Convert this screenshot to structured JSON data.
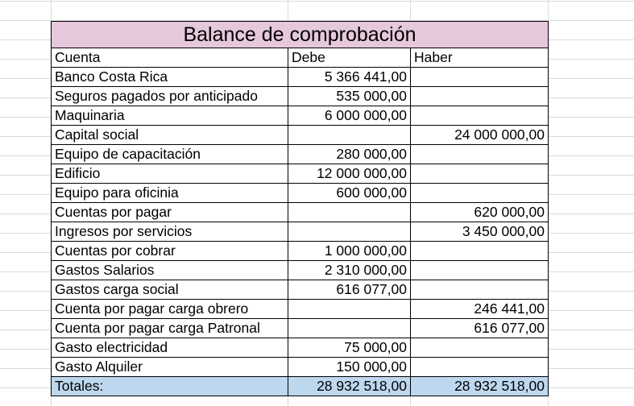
{
  "sheet": {
    "title": "Balance de comprobación",
    "headers": {
      "account": "Cuenta",
      "debit": "Debe",
      "credit": "Haber"
    },
    "rows": [
      {
        "account": "Banco Costa Rica",
        "debit": "5 366 441,00",
        "credit": ""
      },
      {
        "account": "Seguros pagados por anticipado",
        "debit": "535 000,00",
        "credit": ""
      },
      {
        "account": "Maquinaria",
        "debit": "6 000 000,00",
        "credit": ""
      },
      {
        "account": "Capital social",
        "debit": "",
        "credit": "24 000 000,00"
      },
      {
        "account": "Equipo de capacitación",
        "debit": "280 000,00",
        "credit": ""
      },
      {
        "account": "Edificio",
        "debit": "12 000 000,00",
        "credit": ""
      },
      {
        "account": "Equipo para oficinia",
        "debit": "600 000,00",
        "credit": ""
      },
      {
        "account": "Cuentas por pagar",
        "debit": "",
        "credit": "620 000,00"
      },
      {
        "account": "Ingresos por servicios",
        "debit": "",
        "credit": "3 450 000,00"
      },
      {
        "account": "Cuentas por cobrar",
        "debit": "1 000 000,00",
        "credit": ""
      },
      {
        "account": "Gastos Salarios",
        "debit": "2 310 000,00",
        "credit": ""
      },
      {
        "account": "Gastos carga social",
        "debit": "616 077,00",
        "credit": ""
      },
      {
        "account": "Cuenta por pagar carga obrero",
        "debit": "",
        "credit": "246 441,00"
      },
      {
        "account": "Cuenta por pagar carga Patronal",
        "debit": "",
        "credit": "616 077,00"
      },
      {
        "account": "Gasto electricidad",
        "debit": "75 000,00",
        "credit": ""
      },
      {
        "account": "Gasto Alquiler",
        "debit": "150 000,00",
        "credit": ""
      }
    ],
    "totals": {
      "label": "Totales:",
      "debit": "28 932 518,00",
      "credit": "28 932 518,00"
    },
    "colors": {
      "title_bg": "#e6c8dc",
      "totals_bg": "#bdd7ee",
      "grid": "#dadada"
    }
  }
}
